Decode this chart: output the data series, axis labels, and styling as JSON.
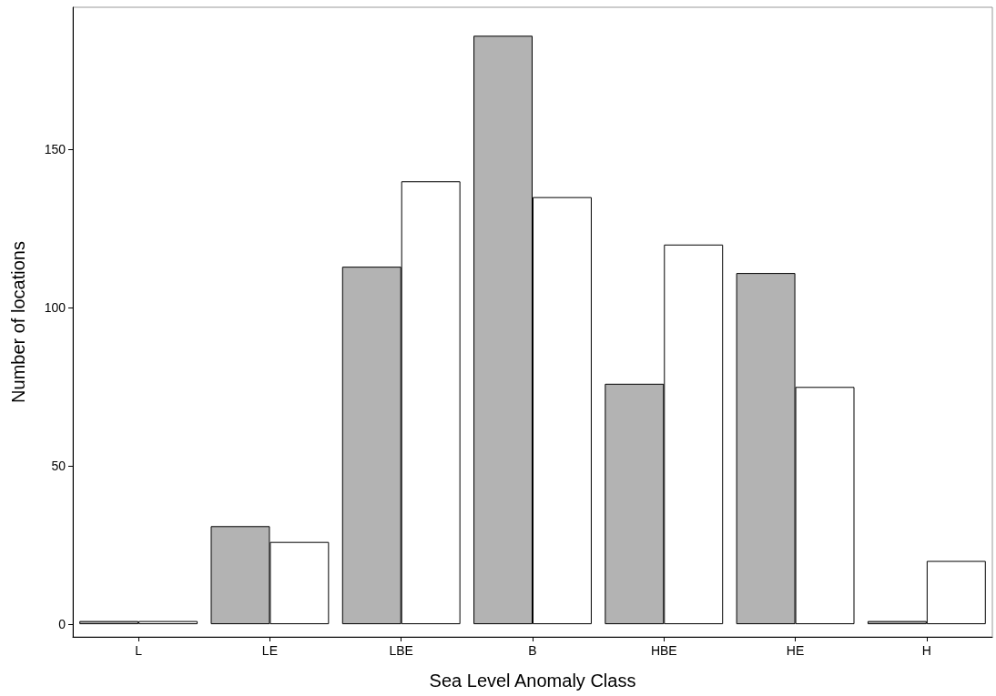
{
  "chart_data": {
    "type": "bar",
    "xlabel": "Sea Level Anomaly Class",
    "ylabel": "Number of locations",
    "categories": [
      "L",
      "LE",
      "LBE",
      "B",
      "HBE",
      "HE",
      "H"
    ],
    "series": [
      {
        "color": "#b3b3b3",
        "values": [
          1,
          31,
          113,
          186,
          76,
          111,
          1
        ]
      },
      {
        "color": "#ffffff",
        "values": [
          1,
          26,
          140,
          135,
          120,
          75,
          20
        ]
      }
    ],
    "ylim": [
      -4,
      195
    ],
    "yticks": [
      0,
      50,
      100,
      150
    ],
    "grid": false
  }
}
